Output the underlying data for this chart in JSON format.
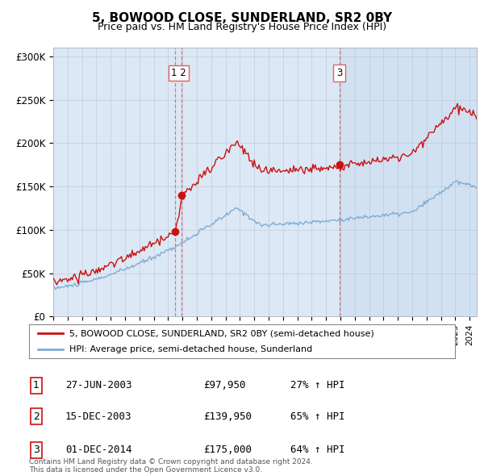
{
  "title": "5, BOWOOD CLOSE, SUNDERLAND, SR2 0BY",
  "subtitle": "Price paid vs. HM Land Registry's House Price Index (HPI)",
  "ylim": [
    0,
    310000
  ],
  "yticks": [
    0,
    50000,
    100000,
    150000,
    200000,
    250000,
    300000
  ],
  "ytick_labels": [
    "£0",
    "£50K",
    "£100K",
    "£150K",
    "£200K",
    "£250K",
    "£300K"
  ],
  "hpi_color": "#7eadd4",
  "price_color": "#cc1111",
  "vline_color": "#e06060",
  "bg_color": "#dce8f5",
  "plot_bg_color": "#dce8f5",
  "fig_bg_color": "#ffffff",
  "legend_label_red": "5, BOWOOD CLOSE, SUNDERLAND, SR2 0BY (semi-detached house)",
  "legend_label_blue": "HPI: Average price, semi-detached house, Sunderland",
  "t1_year": 2003.49,
  "t1_price": 97950,
  "t2_year": 2003.96,
  "t2_price": 139950,
  "t3_year": 2014.92,
  "t3_price": 175000,
  "transaction_table": [
    {
      "num": "1",
      "date": "27-JUN-2003",
      "price": "£97,950",
      "change": "27% ↑ HPI"
    },
    {
      "num": "2",
      "date": "15-DEC-2003",
      "price": "£139,950",
      "change": "65% ↑ HPI"
    },
    {
      "num": "3",
      "date": "01-DEC-2014",
      "price": "£175,000",
      "change": "64% ↑ HPI"
    }
  ],
  "footer": "Contains HM Land Registry data © Crown copyright and database right 2024.\nThis data is licensed under the Open Government Licence v3.0.",
  "x_start_year": 1995.0,
  "x_end_year": 2024.5
}
